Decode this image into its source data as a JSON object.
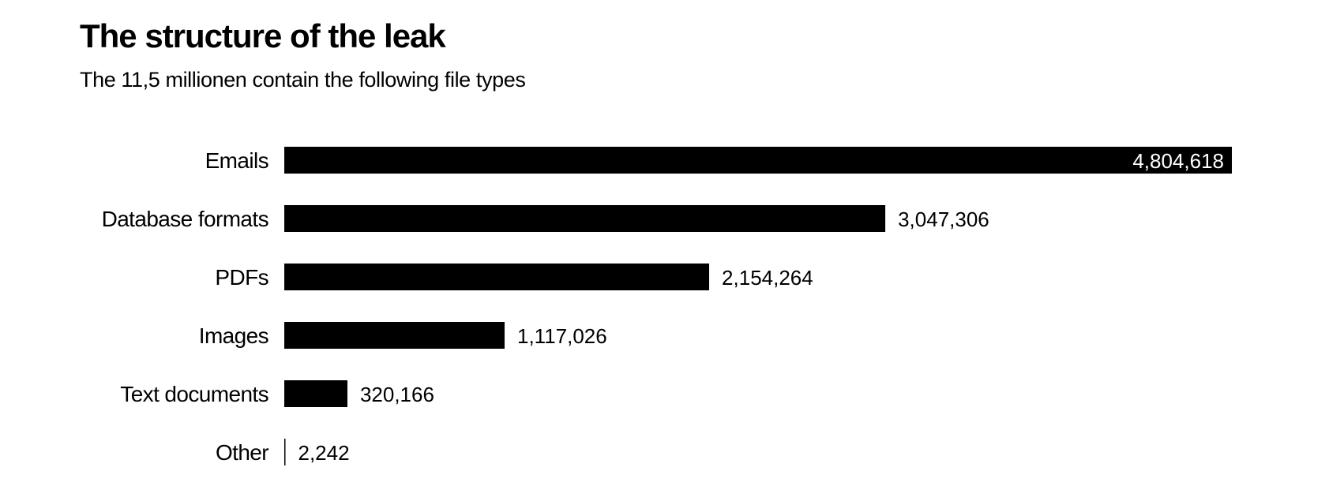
{
  "chart_data": {
    "type": "bar",
    "orientation": "horizontal",
    "title": "The structure of the leak",
    "subtitle": "The 11,5 millionen contain the following file types",
    "categories": [
      "Emails",
      "Database formats",
      "PDFs",
      "Images",
      "Text documents",
      "Other"
    ],
    "values": [
      4804618,
      3047306,
      2154264,
      1117026,
      320166,
      2242
    ],
    "value_labels": [
      "4,804,618",
      "3,047,306",
      "2,154,264",
      "1,117,026",
      "320,166",
      "2,242"
    ],
    "xlim": [
      0,
      4804618
    ],
    "grid": false,
    "legend": "none",
    "bar_color": "#000000",
    "label_color": "#000000",
    "inside_label_color": "#ffffff"
  }
}
